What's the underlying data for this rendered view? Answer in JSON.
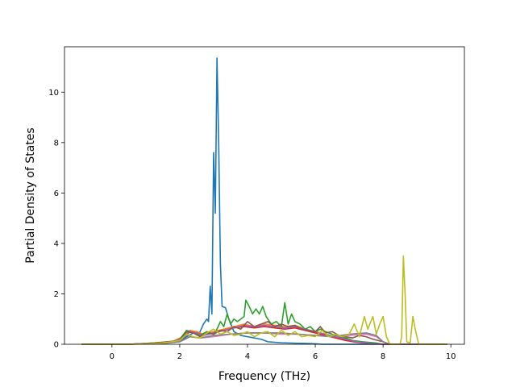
{
  "chart_data": {
    "type": "line",
    "title": "",
    "xlabel": "Frequency (THz)",
    "ylabel": "Partial Density of States",
    "xlim": [
      -1.4,
      10.4
    ],
    "ylim": [
      0,
      11.8
    ],
    "xticks": [
      0,
      2,
      4,
      6,
      8,
      10
    ],
    "yticks": [
      0,
      2,
      4,
      6,
      8,
      10
    ],
    "grid": false,
    "legend": "none",
    "series": [
      {
        "color": "#1f77b4",
        "points": [
          [
            -0.9,
            0
          ],
          [
            0.5,
            0
          ],
          [
            1.0,
            0.02
          ],
          [
            1.5,
            0.05
          ],
          [
            2.0,
            0.1
          ],
          [
            2.2,
            0.3
          ],
          [
            2.4,
            0.45
          ],
          [
            2.55,
            0.35
          ],
          [
            2.7,
            0.8
          ],
          [
            2.8,
            1.0
          ],
          [
            2.85,
            0.9
          ],
          [
            2.9,
            2.3
          ],
          [
            2.95,
            1.2
          ],
          [
            3.0,
            7.6
          ],
          [
            3.05,
            5.2
          ],
          [
            3.1,
            11.35
          ],
          [
            3.15,
            8.0
          ],
          [
            3.2,
            3.2
          ],
          [
            3.25,
            1.5
          ],
          [
            3.35,
            1.45
          ],
          [
            3.45,
            1.0
          ],
          [
            3.6,
            0.5
          ],
          [
            3.8,
            0.35
          ],
          [
            4.0,
            0.3
          ],
          [
            4.2,
            0.25
          ],
          [
            4.4,
            0.2
          ],
          [
            4.6,
            0.1
          ],
          [
            5.0,
            0.06
          ],
          [
            5.5,
            0.04
          ],
          [
            6.0,
            0.02
          ],
          [
            6.2,
            0.0
          ],
          [
            8.0,
            0.0
          ],
          [
            9.9,
            0.0
          ]
        ]
      },
      {
        "color": "#ff7f0e",
        "points": [
          [
            -0.9,
            0
          ],
          [
            0.5,
            0
          ],
          [
            1.2,
            0.05
          ],
          [
            1.8,
            0.12
          ],
          [
            2.1,
            0.3
          ],
          [
            2.3,
            0.55
          ],
          [
            2.5,
            0.5
          ],
          [
            2.7,
            0.4
          ],
          [
            3.0,
            0.5
          ],
          [
            3.3,
            0.6
          ],
          [
            3.6,
            0.7
          ],
          [
            3.9,
            0.8
          ],
          [
            4.2,
            0.7
          ],
          [
            4.5,
            0.8
          ],
          [
            4.8,
            0.75
          ],
          [
            5.1,
            0.7
          ],
          [
            5.4,
            0.75
          ],
          [
            5.7,
            0.6
          ],
          [
            6.0,
            0.5
          ],
          [
            6.3,
            0.4
          ],
          [
            6.6,
            0.3
          ],
          [
            6.9,
            0.2
          ],
          [
            7.2,
            0.1
          ],
          [
            7.6,
            0.05
          ],
          [
            8.0,
            0.0
          ],
          [
            9.9,
            0.0
          ]
        ]
      },
      {
        "color": "#2ca02c",
        "points": [
          [
            -0.9,
            0
          ],
          [
            0.5,
            0
          ],
          [
            1.2,
            0.05
          ],
          [
            1.8,
            0.1
          ],
          [
            2.0,
            0.2
          ],
          [
            2.2,
            0.55
          ],
          [
            2.4,
            0.45
          ],
          [
            2.6,
            0.35
          ],
          [
            2.8,
            0.5
          ],
          [
            3.0,
            0.4
          ],
          [
            3.1,
            0.6
          ],
          [
            3.2,
            0.9
          ],
          [
            3.3,
            0.7
          ],
          [
            3.4,
            1.2
          ],
          [
            3.5,
            0.8
          ],
          [
            3.6,
            1.0
          ],
          [
            3.7,
            0.9
          ],
          [
            3.8,
            1.0
          ],
          [
            3.9,
            1.1
          ],
          [
            3.95,
            1.75
          ],
          [
            4.05,
            1.5
          ],
          [
            4.15,
            1.2
          ],
          [
            4.25,
            1.4
          ],
          [
            4.35,
            1.2
          ],
          [
            4.45,
            1.5
          ],
          [
            4.55,
            1.1
          ],
          [
            4.7,
            0.8
          ],
          [
            4.85,
            0.9
          ],
          [
            5.0,
            0.7
          ],
          [
            5.1,
            1.65
          ],
          [
            5.2,
            0.8
          ],
          [
            5.3,
            1.2
          ],
          [
            5.4,
            0.9
          ],
          [
            5.55,
            0.8
          ],
          [
            5.7,
            0.6
          ],
          [
            5.85,
            0.7
          ],
          [
            6.0,
            0.5
          ],
          [
            6.15,
            0.6
          ],
          [
            6.3,
            0.5
          ],
          [
            6.5,
            0.4
          ],
          [
            6.7,
            0.3
          ],
          [
            6.9,
            0.25
          ],
          [
            7.1,
            0.15
          ],
          [
            7.4,
            0.1
          ],
          [
            7.8,
            0.05
          ],
          [
            8.0,
            0.0
          ],
          [
            9.9,
            0.0
          ]
        ]
      },
      {
        "color": "#d62728",
        "points": [
          [
            -0.9,
            0
          ],
          [
            0.5,
            0
          ],
          [
            1.2,
            0.04
          ],
          [
            1.8,
            0.1
          ],
          [
            2.1,
            0.25
          ],
          [
            2.3,
            0.5
          ],
          [
            2.5,
            0.45
          ],
          [
            2.7,
            0.35
          ],
          [
            3.0,
            0.45
          ],
          [
            3.3,
            0.55
          ],
          [
            3.6,
            0.65
          ],
          [
            3.9,
            0.7
          ],
          [
            4.2,
            0.65
          ],
          [
            4.5,
            0.7
          ],
          [
            4.8,
            0.65
          ],
          [
            5.1,
            0.6
          ],
          [
            5.4,
            0.65
          ],
          [
            5.7,
            0.55
          ],
          [
            6.0,
            0.45
          ],
          [
            6.3,
            0.35
          ],
          [
            6.6,
            0.25
          ],
          [
            6.9,
            0.15
          ],
          [
            7.2,
            0.08
          ],
          [
            7.6,
            0.03
          ],
          [
            8.0,
            0.0
          ],
          [
            9.9,
            0.0
          ]
        ]
      },
      {
        "color": "#9467bd",
        "points": [
          [
            -0.9,
            0
          ],
          [
            0.5,
            0
          ],
          [
            1.2,
            0.04
          ],
          [
            1.8,
            0.1
          ],
          [
            2.1,
            0.25
          ],
          [
            2.3,
            0.5
          ],
          [
            2.5,
            0.45
          ],
          [
            2.7,
            0.35
          ],
          [
            3.0,
            0.45
          ],
          [
            3.3,
            0.55
          ],
          [
            3.6,
            0.65
          ],
          [
            3.9,
            0.75
          ],
          [
            4.2,
            0.7
          ],
          [
            4.5,
            0.75
          ],
          [
            4.8,
            0.7
          ],
          [
            5.1,
            0.65
          ],
          [
            5.4,
            0.7
          ],
          [
            5.7,
            0.6
          ],
          [
            6.0,
            0.5
          ],
          [
            6.3,
            0.4
          ],
          [
            6.6,
            0.3
          ],
          [
            6.9,
            0.2
          ],
          [
            7.2,
            0.1
          ],
          [
            7.6,
            0.04
          ],
          [
            8.0,
            0.0
          ],
          [
            9.9,
            0.0
          ]
        ]
      },
      {
        "color": "#8c564b",
        "points": [
          [
            -0.9,
            0
          ],
          [
            0.5,
            0
          ],
          [
            1.0,
            0.03
          ],
          [
            1.5,
            0.08
          ],
          [
            2.0,
            0.15
          ],
          [
            2.2,
            0.5
          ],
          [
            2.4,
            0.45
          ],
          [
            2.6,
            0.3
          ],
          [
            2.8,
            0.45
          ],
          [
            3.0,
            0.4
          ],
          [
            3.2,
            0.55
          ],
          [
            3.4,
            0.5
          ],
          [
            3.6,
            0.7
          ],
          [
            3.8,
            0.6
          ],
          [
            4.0,
            0.9
          ],
          [
            4.2,
            0.7
          ],
          [
            4.4,
            0.8
          ],
          [
            4.6,
            0.9
          ],
          [
            4.8,
            0.7
          ],
          [
            5.0,
            0.8
          ],
          [
            5.2,
            0.7
          ],
          [
            5.4,
            0.75
          ],
          [
            5.6,
            0.6
          ],
          [
            5.8,
            0.55
          ],
          [
            6.0,
            0.5
          ],
          [
            6.15,
            0.7
          ],
          [
            6.3,
            0.45
          ],
          [
            6.5,
            0.5
          ],
          [
            6.7,
            0.35
          ],
          [
            6.9,
            0.3
          ],
          [
            7.1,
            0.25
          ],
          [
            7.3,
            0.35
          ],
          [
            7.5,
            0.3
          ],
          [
            7.7,
            0.2
          ],
          [
            8.0,
            0.1
          ],
          [
            8.2,
            0.0
          ],
          [
            9.9,
            0.0
          ]
        ]
      },
      {
        "color": "#e377c2",
        "points": [
          [
            -0.9,
            0
          ],
          [
            0.5,
            0
          ],
          [
            1.5,
            0.03
          ],
          [
            2.0,
            0.1
          ],
          [
            2.3,
            0.3
          ],
          [
            2.6,
            0.25
          ],
          [
            3.0,
            0.3
          ],
          [
            3.5,
            0.4
          ],
          [
            4.0,
            0.45
          ],
          [
            4.5,
            0.45
          ],
          [
            5.0,
            0.4
          ],
          [
            5.5,
            0.4
          ],
          [
            6.0,
            0.35
          ],
          [
            6.5,
            0.3
          ],
          [
            7.0,
            0.35
          ],
          [
            7.5,
            0.4
          ],
          [
            7.8,
            0.3
          ],
          [
            8.0,
            0.1
          ],
          [
            8.2,
            0.0
          ],
          [
            9.9,
            0.0
          ]
        ]
      },
      {
        "color": "#7f7f7f",
        "points": [
          [
            -0.9,
            0
          ],
          [
            0.5,
            0
          ],
          [
            1.5,
            0.03
          ],
          [
            2.0,
            0.1
          ],
          [
            2.3,
            0.3
          ],
          [
            2.6,
            0.25
          ],
          [
            3.0,
            0.35
          ],
          [
            3.5,
            0.4
          ],
          [
            4.0,
            0.45
          ],
          [
            4.5,
            0.45
          ],
          [
            5.0,
            0.45
          ],
          [
            5.5,
            0.4
          ],
          [
            6.0,
            0.35
          ],
          [
            6.5,
            0.3
          ],
          [
            7.0,
            0.4
          ],
          [
            7.5,
            0.45
          ],
          [
            7.8,
            0.35
          ],
          [
            8.0,
            0.1
          ],
          [
            8.2,
            0.0
          ],
          [
            9.9,
            0.0
          ]
        ]
      },
      {
        "color": "#bcbd22",
        "points": [
          [
            -0.9,
            0
          ],
          [
            0.5,
            0
          ],
          [
            1.0,
            0.02
          ],
          [
            1.5,
            0.05
          ],
          [
            2.0,
            0.15
          ],
          [
            2.2,
            0.4
          ],
          [
            2.4,
            0.3
          ],
          [
            2.6,
            0.25
          ],
          [
            2.8,
            0.45
          ],
          [
            3.0,
            0.6
          ],
          [
            3.2,
            0.4
          ],
          [
            3.4,
            0.5
          ],
          [
            3.6,
            0.35
          ],
          [
            3.8,
            0.4
          ],
          [
            4.0,
            0.5
          ],
          [
            4.2,
            0.3
          ],
          [
            4.4,
            0.45
          ],
          [
            4.6,
            0.5
          ],
          [
            4.8,
            0.3
          ],
          [
            5.0,
            0.55
          ],
          [
            5.2,
            0.35
          ],
          [
            5.4,
            0.5
          ],
          [
            5.6,
            0.3
          ],
          [
            5.8,
            0.35
          ],
          [
            6.0,
            0.3
          ],
          [
            6.2,
            0.55
          ],
          [
            6.4,
            0.3
          ],
          [
            6.6,
            0.4
          ],
          [
            6.8,
            0.3
          ],
          [
            7.0,
            0.4
          ],
          [
            7.15,
            0.8
          ],
          [
            7.3,
            0.3
          ],
          [
            7.45,
            1.1
          ],
          [
            7.55,
            0.6
          ],
          [
            7.7,
            1.1
          ],
          [
            7.8,
            0.4
          ],
          [
            7.9,
            0.8
          ],
          [
            8.0,
            1.1
          ],
          [
            8.1,
            0.3
          ],
          [
            8.2,
            0.0
          ],
          [
            8.5,
            0.0
          ],
          [
            8.55,
            0.3
          ],
          [
            8.6,
            3.5
          ],
          [
            8.65,
            2.0
          ],
          [
            8.7,
            0.1
          ],
          [
            8.8,
            0.05
          ],
          [
            8.88,
            1.1
          ],
          [
            8.95,
            0.6
          ],
          [
            9.05,
            0.0
          ],
          [
            9.9,
            0.0
          ]
        ]
      }
    ]
  }
}
